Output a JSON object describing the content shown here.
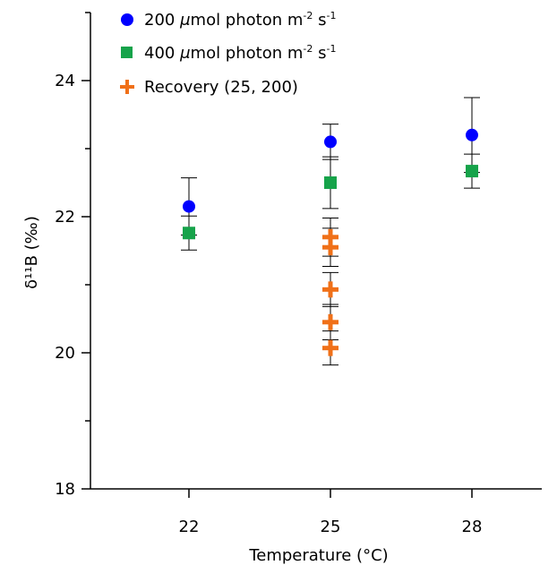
{
  "chart_data": {
    "type": "scatter",
    "xlabel": "Temperature (°C)",
    "ylabel": "δ¹¹B (‰)",
    "x_ticks": [
      22,
      25,
      28
    ],
    "y_ticks": [
      18,
      20,
      22,
      24
    ],
    "xlim": [
      19,
      31
    ],
    "ylim": [
      18,
      25
    ],
    "grid": false,
    "legend_position": "top-left",
    "series": [
      {
        "name": "200 μmol photon m⁻² s⁻¹",
        "marker": "circle",
        "color": "#0000ff",
        "points": [
          {
            "x": 22,
            "y": 22.15,
            "err": 0.42
          },
          {
            "x": 25,
            "y": 23.1,
            "err": 0.26
          },
          {
            "x": 28,
            "y": 23.2,
            "err": 0.55
          }
        ]
      },
      {
        "name": "400 μmol photon m⁻² s⁻¹",
        "marker": "square",
        "color": "#16a34a",
        "points": [
          {
            "x": 22,
            "y": 21.76,
            "err": 0.25
          },
          {
            "x": 25,
            "y": 22.5,
            "err": 0.38
          },
          {
            "x": 28,
            "y": 22.67,
            "err": 0.25
          }
        ]
      },
      {
        "name": "Recovery (25, 200)",
        "marker": "plus",
        "color": "#f07018",
        "points": [
          {
            "x": 25,
            "y": 21.7,
            "err": 0.28
          },
          {
            "x": 25,
            "y": 21.55,
            "err": 0.28
          },
          {
            "x": 25,
            "y": 20.93,
            "err": 0.25
          },
          {
            "x": 25,
            "y": 20.45,
            "err": 0.26
          },
          {
            "x": 25,
            "y": 20.07,
            "err": 0.25
          }
        ]
      }
    ]
  },
  "legend": {
    "items": [
      {
        "prefix": "200 ",
        "unit": "μ",
        "suffix": "mol photon m",
        "exp": "-2",
        "mid": " s",
        "exp2": "-1"
      },
      {
        "prefix": "400 ",
        "unit": "μ",
        "suffix": "mol photon m",
        "exp": "-2",
        "mid": " s",
        "exp2": "-1"
      },
      {
        "label": "Recovery (25, 200)"
      }
    ]
  }
}
